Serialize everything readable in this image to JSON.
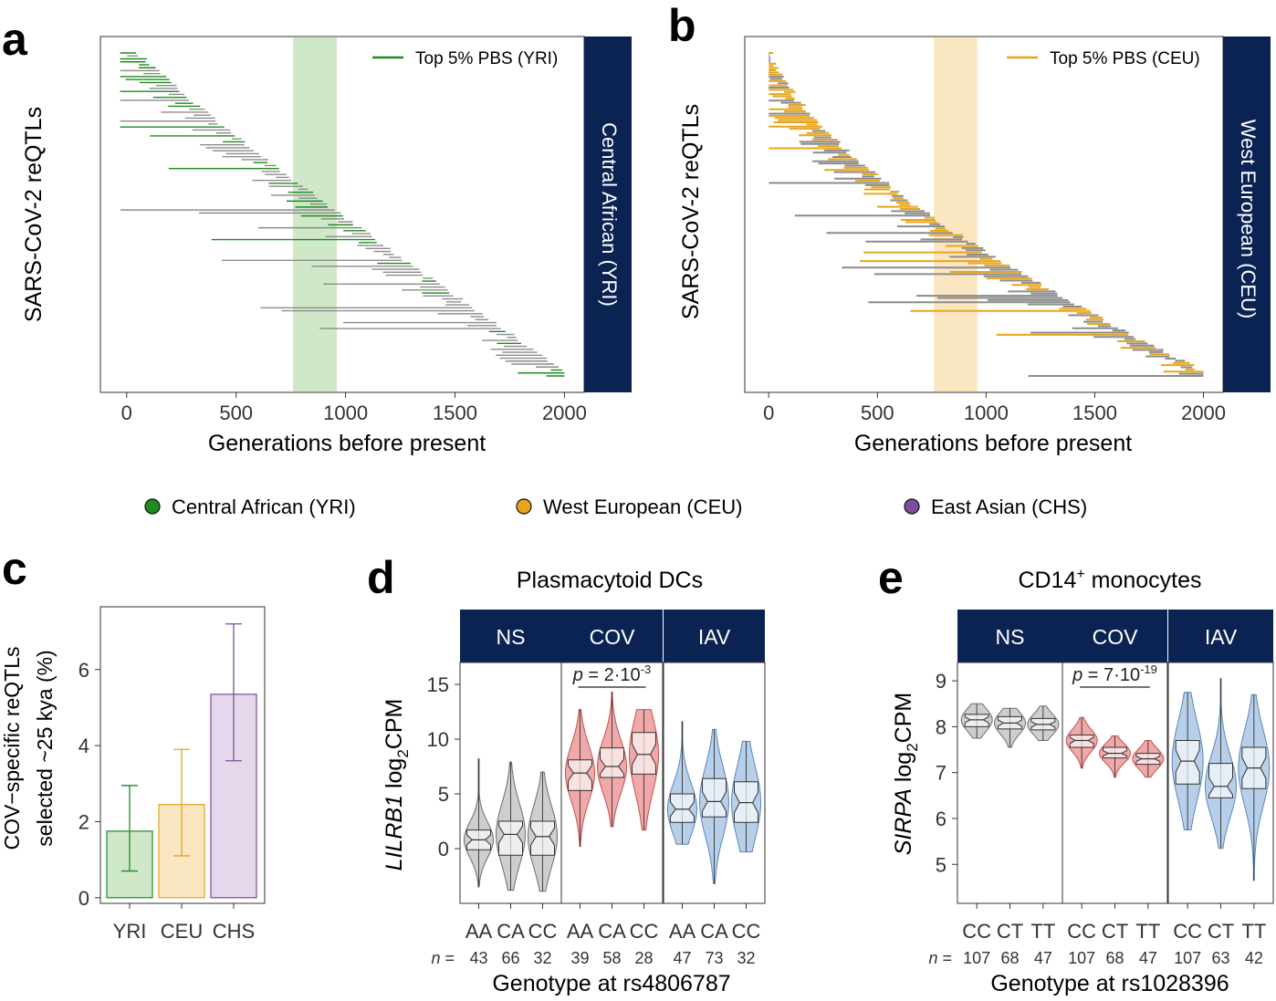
{
  "colors": {
    "yri": "#1f8a1f",
    "yri_fill": "#cfe8c8",
    "ceu": "#e8a51c",
    "ceu_fill": "#fbe6c2",
    "chs": "#7a4e9a",
    "chs_fill": "#e5d7ec",
    "gray": "#8c8c8c",
    "strip": "#0b2353",
    "ns_fill": "#bdbdbd",
    "cov_fill": "#e98c8c",
    "iav_fill": "#9fbfe0"
  },
  "legend": {
    "items": [
      {
        "label": "Central African (YRI)",
        "color": "#1f8a1f"
      },
      {
        "label": "West European (CEU)",
        "color": "#e8a51c"
      },
      {
        "label": "East Asian (CHS)",
        "color": "#7a4e9a"
      }
    ]
  },
  "chart_data": [
    {
      "panel": "a",
      "type": "segments",
      "ylabel": "SARS-CoV-2 reQTLs",
      "xlabel": "Generations before present",
      "xticks": [
        0,
        500,
        1000,
        1500,
        2000
      ],
      "xlim": [
        -120,
        2090
      ],
      "strip_label": "Central African (YRI)",
      "legend_label": "Top 5% PBS (YRI)",
      "highlight_band": [
        760,
        960
      ],
      "n_segments": 110,
      "highlight_color": "#1f8a1f"
    },
    {
      "panel": "b",
      "type": "segments",
      "ylabel": "SARS-CoV-2 reQTLs",
      "xlabel": "Generations before present",
      "xticks": [
        0,
        500,
        1000,
        1500,
        2000
      ],
      "xlim": [
        -110,
        2090
      ],
      "strip_label": "West European (CEU)",
      "legend_label": "Top 5% PBS (CEU)",
      "highlight_band": [
        760,
        960
      ],
      "n_segments": 150,
      "highlight_color": "#e8a51c"
    },
    {
      "panel": "c",
      "type": "bar",
      "ylabel_line1": "COV−specific reQTLs",
      "ylabel_line2": "selected ~25 kya (%)",
      "categories": [
        "YRI",
        "CEU",
        "CHS"
      ],
      "values": [
        1.75,
        2.45,
        5.35
      ],
      "err_low": [
        0.7,
        1.1,
        3.6
      ],
      "err_high": [
        2.95,
        3.9,
        7.2
      ],
      "yticks": [
        0,
        2,
        4,
        6
      ],
      "ylim": [
        -0.15,
        7.65
      ]
    },
    {
      "panel": "d",
      "type": "violin",
      "title": "Plasmacytoid DCs",
      "ylabel_gene": "LILRB1",
      "ylabel_rest": " log",
      "ylabel_sub": "2",
      "ylabel_end": "CPM",
      "facets": [
        "NS",
        "COV",
        "IAV"
      ],
      "genotypes": [
        "AA",
        "CA",
        "CC"
      ],
      "n_prefix": "n =",
      "n_values": [
        [
          "43",
          "66",
          "32"
        ],
        [
          "39",
          "58",
          "28"
        ],
        [
          "47",
          "73",
          "32"
        ]
      ],
      "medians": [
        [
          0.8,
          1.3,
          1.1
        ],
        [
          6.9,
          7.5,
          8.6
        ],
        [
          3.6,
          4.3,
          4.2
        ]
      ],
      "q1": [
        [
          -0.1,
          -0.6,
          -0.6
        ],
        [
          5.3,
          6.5,
          6.8
        ],
        [
          2.4,
          2.9,
          2.4
        ]
      ],
      "q3": [
        [
          1.7,
          2.5,
          2.5
        ],
        [
          8.1,
          9.2,
          10.6
        ],
        [
          5.0,
          6.4,
          6.1
        ]
      ],
      "min": [
        [
          -3.5,
          -3.8,
          -3.9
        ],
        [
          0.2,
          2.0,
          1.7
        ],
        [
          0.4,
          -3.2,
          -0.3
        ]
      ],
      "max": [
        [
          8.2,
          7.9,
          7.0
        ],
        [
          12.7,
          14.3,
          12.7
        ],
        [
          11.6,
          10.9,
          9.8
        ]
      ],
      "pvalue": "2·10",
      "pvalue_exp": "-3",
      "yticks": [
        0,
        5,
        10,
        15
      ],
      "ylim": [
        -5,
        17
      ],
      "xlabel": "Genotype at rs4806787"
    },
    {
      "panel": "e",
      "type": "violin",
      "title": "CD14",
      "title_sup": "+",
      "title_end": " monocytes",
      "ylabel_gene": "SIRPA",
      "ylabel_rest": " log",
      "ylabel_sub": "2",
      "ylabel_end": "CPM",
      "facets": [
        "NS",
        "COV",
        "IAV"
      ],
      "genotypes": [
        "CC",
        "CT",
        "TT"
      ],
      "n_prefix": "n =",
      "n_values": [
        [
          "107",
          "68",
          "47"
        ],
        [
          "107",
          "68",
          "47"
        ],
        [
          "107",
          "63",
          "42"
        ]
      ],
      "medians": [
        [
          8.15,
          8.08,
          8.05
        ],
        [
          7.7,
          7.42,
          7.3
        ],
        [
          7.25,
          6.7,
          7.1
        ]
      ],
      "q1": [
        [
          8.0,
          7.95,
          7.93
        ],
        [
          7.55,
          7.32,
          7.18
        ],
        [
          6.75,
          6.45,
          6.65
        ]
      ],
      "q3": [
        [
          8.27,
          8.22,
          8.18
        ],
        [
          7.82,
          7.55,
          7.42
        ],
        [
          7.7,
          7.2,
          7.55
        ]
      ],
      "min": [
        [
          7.75,
          7.55,
          7.7
        ],
        [
          7.1,
          6.9,
          6.9
        ],
        [
          5.75,
          5.35,
          4.65
        ]
      ],
      "max": [
        [
          8.5,
          8.4,
          8.45
        ],
        [
          8.2,
          7.8,
          7.7
        ],
        [
          8.75,
          9.05,
          8.7
        ]
      ],
      "pvalue": "7·10",
      "pvalue_exp": "-19",
      "yticks": [
        5,
        6,
        7,
        8,
        9
      ],
      "ylim": [
        4.15,
        9.4
      ],
      "xlabel": "Genotype at rs1028396"
    }
  ]
}
